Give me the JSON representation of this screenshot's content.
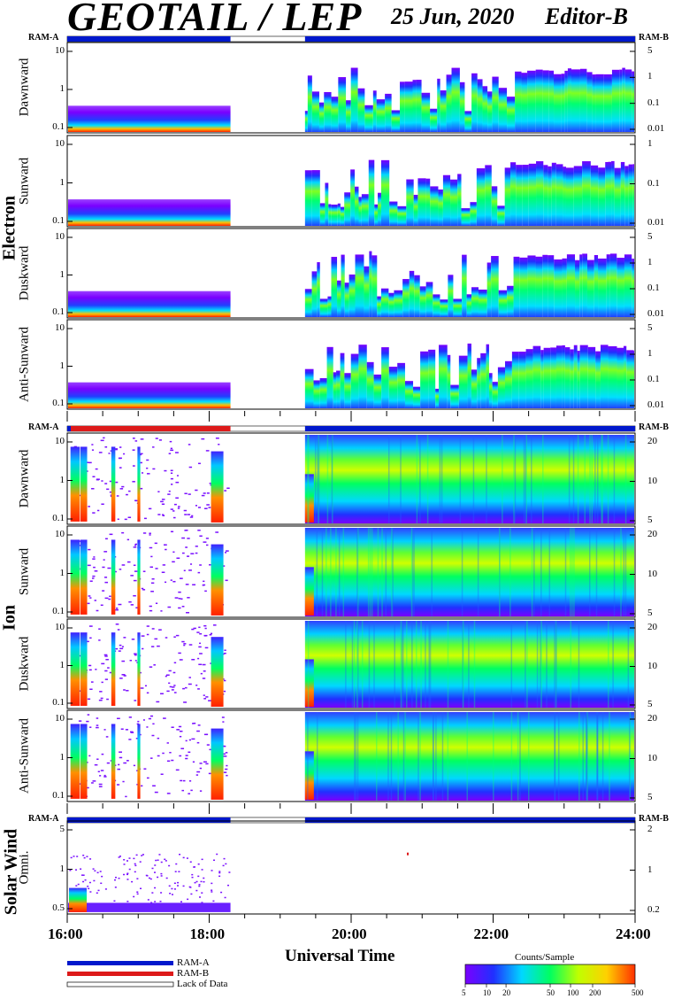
{
  "header": {
    "title": "GEOTAIL / LEP",
    "date": "25 Jun, 2020",
    "editor": "Editor-B"
  },
  "ram_labels": {
    "left": "RAM-A",
    "right": "RAM-B"
  },
  "groups": {
    "electron": "Electron",
    "ion": "Ion",
    "solar_wind": "Solar Wind"
  },
  "chart_data": {
    "type": "heatmap",
    "xlabel": "Universal Time",
    "x_ticks": [
      "16:00",
      "18:00",
      "20:00",
      "22:00",
      "24:00"
    ],
    "x_range_hours": [
      16,
      24
    ],
    "data_gap_hours": [
      18.3,
      19.35
    ],
    "panels": [
      {
        "group": "Electron",
        "label": "Dawnward",
        "left_ticks": [
          "10",
          "1",
          "0.1"
        ],
        "right_ticks": [
          "5",
          "1",
          "0.1",
          "0.01"
        ]
      },
      {
        "group": "Electron",
        "label": "Sunward",
        "left_ticks": [
          "10",
          "1",
          "0.1"
        ],
        "right_ticks": [
          "1",
          "0.1",
          "0.01"
        ]
      },
      {
        "group": "Electron",
        "label": "Duskward",
        "left_ticks": [
          "10",
          "1",
          "0.1"
        ],
        "right_ticks": [
          "5",
          "1",
          "0.1",
          "0.01"
        ]
      },
      {
        "group": "Electron",
        "label": "Anti-Sunward",
        "left_ticks": [
          "10",
          "1",
          "0.1"
        ],
        "right_ticks": [
          "5",
          "1",
          "0.1",
          "0.01"
        ]
      },
      {
        "group": "Ion",
        "label": "Dawnward",
        "left_ticks": [
          "10",
          "1",
          "0.1"
        ],
        "right_ticks": [
          "20",
          "10",
          "5"
        ]
      },
      {
        "group": "Ion",
        "label": "Sunward",
        "left_ticks": [
          "10",
          "1",
          "0.1"
        ],
        "right_ticks": [
          "20",
          "10",
          "5"
        ]
      },
      {
        "group": "Ion",
        "label": "Duskward",
        "left_ticks": [
          "10",
          "1",
          "0.1"
        ],
        "right_ticks": [
          "20",
          "10",
          "5"
        ]
      },
      {
        "group": "Ion",
        "label": "Anti-Sunward",
        "left_ticks": [
          "10",
          "1",
          "0.1"
        ],
        "right_ticks": [
          "20",
          "10",
          "5"
        ]
      },
      {
        "group": "Solar Wind",
        "label": "Omni.",
        "left_ticks": [
          "5",
          "1",
          "0.5"
        ],
        "right_ticks": [
          "2",
          "1",
          "0.2"
        ]
      }
    ],
    "legend": [
      "RAM-A",
      "RAM-B",
      "Lack of Data"
    ],
    "colorbar": {
      "title": "Counts/Sample",
      "ticks": [
        "5",
        "10",
        "20",
        "50",
        "100",
        "200",
        "500"
      ],
      "colors": [
        "#7a00ff",
        "#2030ff",
        "#00d8ff",
        "#00ff60",
        "#c0ff00",
        "#ffd000",
        "#ff3000"
      ]
    }
  },
  "colors": {
    "ram_a": "#0018cc",
    "ram_b": "#dd1a1a"
  }
}
